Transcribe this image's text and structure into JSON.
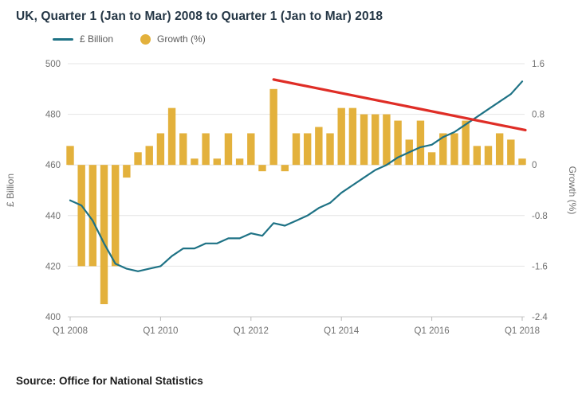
{
  "title": "UK, Quarter 1 (Jan to Mar) 2008 to Quarter 1 (Jan to Mar) 2018",
  "source": "Source: Office for National Statistics",
  "legend": [
    {
      "label": "£ Billion",
      "type": "line",
      "color": "#1e7285"
    },
    {
      "label": "Growth (%)",
      "type": "circle",
      "color": "#e3b13c"
    }
  ],
  "chart_data": {
    "type": "bar",
    "subtype": "combo-bar-line-with-trend",
    "x_quarters": [
      "Q1 2008",
      "Q2 2008",
      "Q3 2008",
      "Q4 2008",
      "Q1 2009",
      "Q2 2009",
      "Q3 2009",
      "Q4 2009",
      "Q1 2010",
      "Q2 2010",
      "Q3 2010",
      "Q4 2010",
      "Q1 2011",
      "Q2 2011",
      "Q3 2011",
      "Q4 2011",
      "Q1 2012",
      "Q2 2012",
      "Q3 2012",
      "Q4 2012",
      "Q1 2013",
      "Q2 2013",
      "Q3 2013",
      "Q4 2013",
      "Q1 2014",
      "Q2 2014",
      "Q3 2014",
      "Q4 2014",
      "Q1 2015",
      "Q2 2015",
      "Q3 2015",
      "Q4 2015",
      "Q1 2016",
      "Q2 2016",
      "Q3 2016",
      "Q4 2016",
      "Q1 2017",
      "Q2 2017",
      "Q3 2017",
      "Q4 2017",
      "Q1 2018"
    ],
    "x_tick_labels": [
      "Q1 2008",
      "Q1 2010",
      "Q1 2012",
      "Q1 2014",
      "Q1 2016",
      "Q1 2018"
    ],
    "series": [
      {
        "name": "£ Billion",
        "type": "line",
        "axis": "left",
        "color": "#1e7285",
        "values": [
          446,
          444,
          438,
          429,
          421,
          419,
          418,
          419,
          420,
          424,
          427,
          427,
          429,
          429,
          431,
          431,
          433,
          432,
          437,
          436,
          438,
          440,
          443,
          445,
          449,
          452,
          455,
          458,
          460,
          463,
          465,
          467,
          468,
          471,
          473,
          476,
          479,
          482,
          485,
          488,
          493
        ]
      },
      {
        "name": "Growth (%)",
        "type": "bar",
        "axis": "right",
        "color": "#e3b13c",
        "values": [
          0.3,
          -1.6,
          -1.6,
          -2.2,
          -1.6,
          -0.2,
          0.2,
          0.3,
          0.5,
          0.9,
          0.5,
          0.1,
          0.5,
          0.1,
          0.5,
          0.1,
          0.5,
          -0.1,
          1.2,
          -0.1,
          0.5,
          0.5,
          0.6,
          0.5,
          0.9,
          0.9,
          0.8,
          0.8,
          0.8,
          0.7,
          0.4,
          0.7,
          0.2,
          0.5,
          0.5,
          0.7,
          0.3,
          0.3,
          0.5,
          0.4,
          0.1
        ]
      }
    ],
    "trend_line": {
      "color": "#df2d26",
      "from": {
        "quarter": "Q3 2012",
        "growth": 1.35
      },
      "to": {
        "quarter": "Q1 2018",
        "growth": 0.55
      }
    },
    "left_axis": {
      "label": "£ Billion",
      "min": 400,
      "max": 500,
      "ticks": [
        400,
        420,
        440,
        460,
        480,
        500
      ]
    },
    "right_axis": {
      "label": "Growth (%)",
      "min": -2.4,
      "max": 1.6,
      "ticks": [
        -2.4,
        -1.6,
        -0.8,
        0,
        0.8,
        1.6
      ]
    },
    "grid": "horizontal",
    "legend_position": "top-left",
    "background": "#ffffff"
  }
}
